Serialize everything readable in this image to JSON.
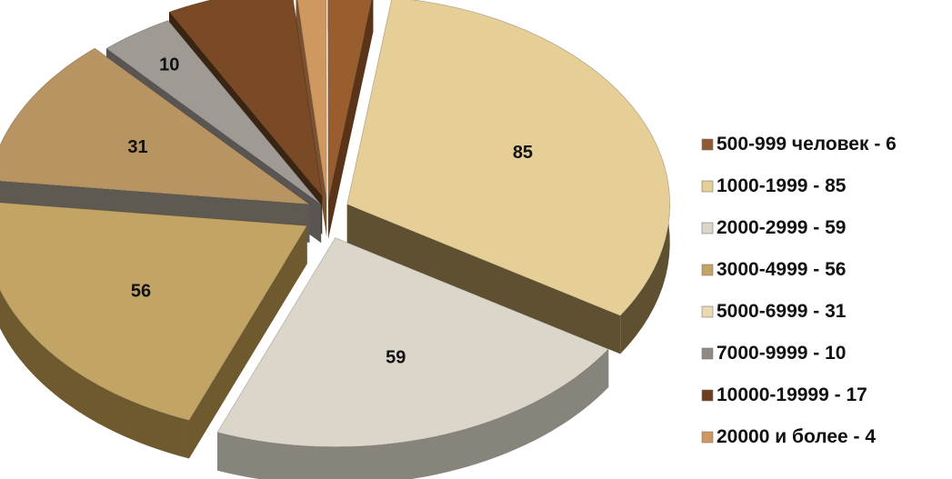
{
  "chart_data": {
    "type": "pie",
    "title": "",
    "legend_position": "right",
    "series": [
      {
        "name": "500-999  человек - 6",
        "value": 6,
        "color": "#8e5a33"
      },
      {
        "name": "1000-1999  - 85",
        "value": 85,
        "color": "#e6cf96"
      },
      {
        "name": "2000-2999  - 59",
        "value": 59,
        "color": "#dcd6ca"
      },
      {
        "name": "3000-4999  - 56",
        "value": 56,
        "color": "#c2a464"
      },
      {
        "name": "5000-6999  - 31",
        "value": 31,
        "color": "#e9d9b0"
      },
      {
        "name": "7000-9999  - 10",
        "value": 10,
        "color": "#8f8a86"
      },
      {
        "name": "10000-19999  - 17",
        "value": 17,
        "color": "#6b3f1f"
      },
      {
        "name": "20000 и более - 4",
        "value": 4,
        "color": "#cf9860"
      }
    ],
    "slice_colors": [
      "#e6cf96",
      "#dcd6ca",
      "#c2a464",
      "#b89462",
      "#a09a94",
      "#7a4a26",
      "#cf9860",
      "#9a5e2e"
    ],
    "slice_side_colors": [
      "#5e5030",
      "#87847c",
      "#6e5a2e",
      "#5e5a52",
      "#595552",
      "#3a2412",
      "#7a5230",
      "#5a3418"
    ]
  }
}
